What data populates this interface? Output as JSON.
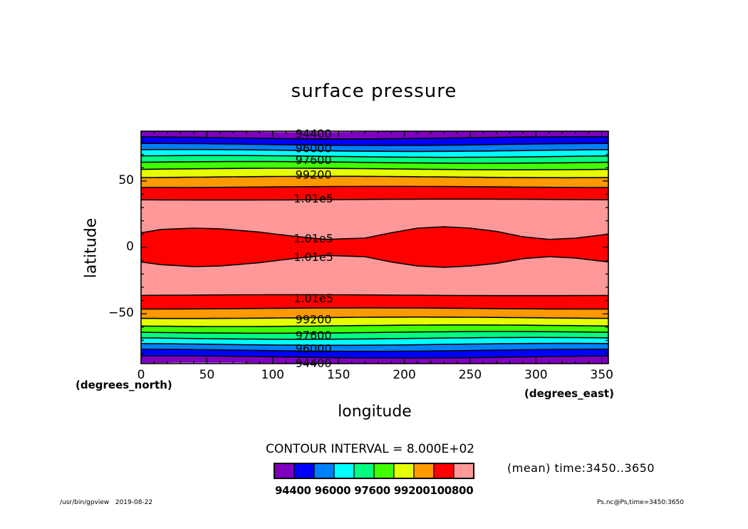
{
  "chart_data": {
    "type": "heatmap",
    "title": "surface pressure",
    "xlabel": "longitude",
    "ylabel": "latitude",
    "x_units": "(degrees_east)",
    "y_units": "(degrees_north)",
    "xlim": [
      0,
      355
    ],
    "ylim": [
      -87.5,
      87.5
    ],
    "x_ticks": [
      0,
      50,
      100,
      150,
      200,
      250,
      300,
      350
    ],
    "y_ticks": [
      50,
      0,
      -50
    ],
    "y_tick_labels": [
      "50",
      "0",
      "−50"
    ],
    "contour_interval_text": "CONTOUR INTERVAL = 8.000E+02",
    "time_text": "(mean) time:3450..3650",
    "footer_left": "/usr/bin/gpview   2019-08-22",
    "footer_right": "Ps.nc@Ps,time=3450:3650",
    "colorbar": {
      "colors": [
        "#7f00bf",
        "#0000ff",
        "#0080ff",
        "#00ffff",
        "#00ff80",
        "#40ff00",
        "#e6ff00",
        "#ff9900",
        "#ff0000",
        "#ff9999"
      ],
      "labels_text": "94400 96000 97600 99200100800"
    },
    "bands": [
      {
        "lat_north": 87.5,
        "lat_south": 82.5,
        "color": "#7f00bf"
      },
      {
        "lat_north": 82.5,
        "lat_south": 77.5,
        "color": "#0000ff"
      },
      {
        "lat_north": 77.5,
        "lat_south": 73,
        "color": "#0080ff"
      },
      {
        "lat_north": 73,
        "lat_south": 68.5,
        "color": "#00ffff"
      },
      {
        "lat_north": 68.5,
        "lat_south": 64,
        "color": "#00ff80"
      },
      {
        "lat_north": 64,
        "lat_south": 59,
        "color": "#40ff00"
      },
      {
        "lat_north": 59,
        "lat_south": 53,
        "color": "#e6ff00"
      },
      {
        "lat_north": 53,
        "lat_south": 45.5,
        "color": "#ff9900"
      },
      {
        "lat_north": 45.5,
        "lat_south": 36,
        "color": "#ff0000"
      },
      {
        "lat_north": 36,
        "lat_south": -36,
        "color": "#ff9999"
      },
      {
        "lat_north": -36,
        "lat_south": -46,
        "color": "#ff0000"
      },
      {
        "lat_north": -46,
        "lat_south": -53,
        "color": "#ff9900"
      },
      {
        "lat_north": -53,
        "lat_south": -59,
        "color": "#e6ff00"
      },
      {
        "lat_north": -59,
        "lat_south": -64,
        "color": "#40ff00"
      },
      {
        "lat_north": -64,
        "lat_south": -68.5,
        "color": "#00ff80"
      },
      {
        "lat_north": -68.5,
        "lat_south": -73,
        "color": "#00ffff"
      },
      {
        "lat_north": -73,
        "lat_south": -77.5,
        "color": "#0080ff"
      },
      {
        "lat_north": -77.5,
        "lat_south": -82.5,
        "color": "#0000ff"
      },
      {
        "lat_north": -82.5,
        "lat_south": -87.5,
        "color": "#7f00bf"
      }
    ],
    "equatorial_band": {
      "color": "#ff0000",
      "north_edge": {
        "lon": [
          0,
          15,
          40,
          60,
          90,
          115,
          140,
          170,
          190,
          210,
          230,
          250,
          270,
          290,
          310,
          330,
          355
        ],
        "lat": [
          11,
          13.5,
          14.5,
          14,
          11.5,
          8.5,
          6,
          7,
          11,
          14.5,
          15.5,
          14.5,
          12,
          8,
          6,
          7,
          10
        ]
      },
      "south_edge": {
        "lon": [
          0,
          15,
          40,
          60,
          90,
          115,
          140,
          170,
          190,
          210,
          230,
          250,
          270,
          290,
          310,
          330,
          355
        ],
        "lat": [
          -11,
          -13,
          -14.5,
          -14,
          -11.5,
          -8.5,
          -6,
          -7,
          -11,
          -14,
          -15,
          -14,
          -12,
          -8.5,
          -7,
          -8,
          -11
        ]
      }
    },
    "contour_labels": [
      {
        "text": "94400",
        "lon": 131,
        "lat": 86
      },
      {
        "text": "96000",
        "lon": 131,
        "lat": 75
      },
      {
        "text": "97600",
        "lon": 131,
        "lat": 66
      },
      {
        "text": "99200",
        "lon": 131,
        "lat": 55
      },
      {
        "text": "1.01e5",
        "lon": 131,
        "lat": 37
      },
      {
        "text": "1.01e5",
        "lon": 131,
        "lat": 7
      },
      {
        "text": "1.01e5",
        "lon": 131,
        "lat": -7
      },
      {
        "text": "1.01e5",
        "lon": 131,
        "lat": -38
      },
      {
        "text": "99200",
        "lon": 131,
        "lat": -54
      },
      {
        "text": "97600",
        "lon": 131,
        "lat": -66
      },
      {
        "text": "96000",
        "lon": 131,
        "lat": -76
      },
      {
        "text": "94400",
        "lon": 131,
        "lat": -87
      }
    ]
  }
}
